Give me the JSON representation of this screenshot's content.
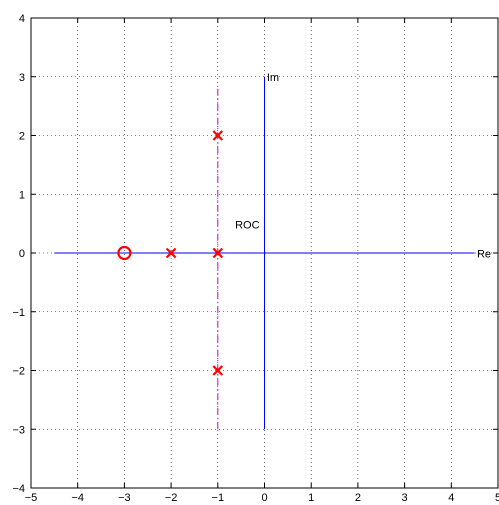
{
  "chart_data": {
    "type": "scatter",
    "title": "",
    "xlabel": "",
    "ylabel": "",
    "xlim": [
      -5,
      5
    ],
    "ylim": [
      -4,
      4
    ],
    "xticks": [
      -5,
      -4,
      -3,
      -2,
      -1,
      0,
      1,
      2,
      3,
      4,
      5
    ],
    "yticks": [
      -4,
      -3,
      -2,
      -1,
      0,
      1,
      2,
      3,
      4
    ],
    "xtick_labels": [
      "−5",
      "−4",
      "−3",
      "−2",
      "−1",
      "0",
      "1",
      "2",
      "3",
      "4",
      "5"
    ],
    "ytick_labels": [
      "−4",
      "−3",
      "−2",
      "−1",
      "0",
      "1",
      "2",
      "3",
      "4"
    ],
    "grid": true,
    "lines": [
      {
        "name": "real-axis",
        "x": [
          -4.5,
          4.5
        ],
        "y": [
          0,
          0
        ],
        "color": "#0000ff",
        "style": "solid"
      },
      {
        "name": "imaginary-axis",
        "x": [
          0,
          0
        ],
        "y": [
          -3,
          3
        ],
        "color": "#0000ff",
        "style": "solid"
      },
      {
        "name": "roc-boundary",
        "x": [
          -1,
          -1
        ],
        "y": [
          -3,
          2.85
        ],
        "color": "#cc00cc",
        "style": "dashdot"
      }
    ],
    "zeros": [
      {
        "x": -3,
        "y": 0
      }
    ],
    "poles": [
      {
        "x": -2,
        "y": 0
      },
      {
        "x": -1,
        "y": 0
      },
      {
        "x": -1,
        "y": 2
      },
      {
        "x": -1,
        "y": -2
      }
    ],
    "marker_color": "#ff0000",
    "annotations": [
      {
        "text": "Im",
        "x": 0.05,
        "y": 2.93
      },
      {
        "text": "Re",
        "x": 4.55,
        "y": -0.08
      },
      {
        "text": "ROC",
        "x": -0.63,
        "y": 0.42
      }
    ]
  }
}
